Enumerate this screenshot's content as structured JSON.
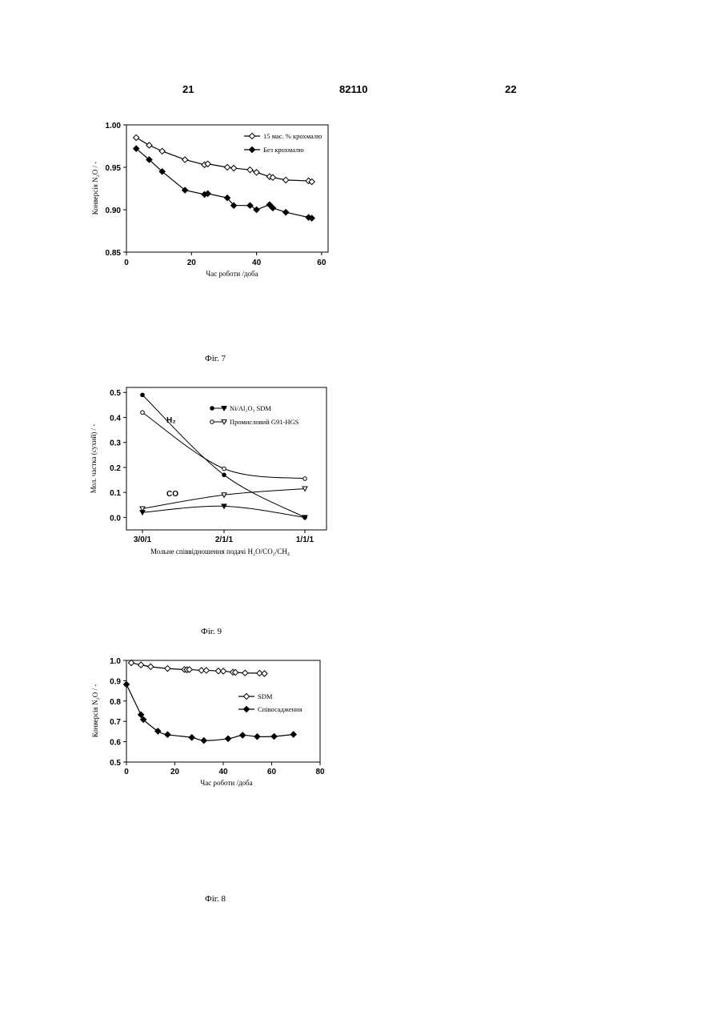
{
  "header": {
    "left": "21",
    "center": "82110",
    "right": "22"
  },
  "captions": {
    "fig7": "Фіг. 7",
    "fig9": "Фіг. 9",
    "fig8": "Фіг. 8"
  },
  "chart_data": [
    {
      "id": "fig7",
      "type": "line",
      "xlabel": "Час роботи /доба",
      "ylabel": "Конверсія N₂O / -",
      "xlim": [
        0,
        62
      ],
      "ylim": [
        0.85,
        1.0
      ],
      "xticks": [
        "0",
        "20",
        "40",
        "60"
      ],
      "yticks": [
        "0.85",
        "0.90",
        "0.95",
        "1.00"
      ],
      "legend_position": "top-right",
      "series": [
        {
          "name": "15 мас. % крохмалю",
          "marker": "open-diamond",
          "x": [
            3,
            7,
            11,
            18,
            24,
            25,
            31,
            33,
            38,
            40,
            44,
            45,
            49,
            56,
            57
          ],
          "y": [
            0.985,
            0.976,
            0.969,
            0.959,
            0.953,
            0.954,
            0.95,
            0.949,
            0.947,
            0.944,
            0.939,
            0.938,
            0.935,
            0.934,
            0.933
          ]
        },
        {
          "name": "Без крохмалю",
          "marker": "filled-diamond",
          "x": [
            3,
            7,
            11,
            18,
            24,
            25,
            31,
            33,
            38,
            40,
            44,
            45,
            49,
            56,
            57
          ],
          "y": [
            0.972,
            0.959,
            0.945,
            0.923,
            0.918,
            0.919,
            0.914,
            0.905,
            0.905,
            0.9,
            0.906,
            0.902,
            0.897,
            0.891,
            0.89
          ]
        }
      ]
    },
    {
      "id": "fig9",
      "type": "line",
      "xlabel": "Мольне співвідношення подачі H₂O/CO₂/CH₄",
      "ylabel": "Мол. частка (сухий) / -",
      "categories": [
        "3/0/1",
        "2/1/1",
        "1/1/1"
      ],
      "ylim": [
        -0.05,
        0.52
      ],
      "yticks": [
        "0.0",
        "0.1",
        "0.2",
        "0.3",
        "0.4",
        "0.5"
      ],
      "legend_position": "top-right",
      "annotations": [
        "H₂",
        "CO"
      ],
      "series": [
        {
          "name": "Ni/Al₂O₃ SDM (H₂)",
          "marker": "filled-circle",
          "values": [
            0.49,
            0.17,
            0.0
          ]
        },
        {
          "name": "Промисловий G91-HGS (H₂)",
          "marker": "open-circle",
          "values": [
            0.42,
            0.195,
            0.155
          ]
        },
        {
          "name": "Ni/Al₂O₃ SDM (CO)",
          "marker": "filled-triangle-down",
          "values": [
            0.02,
            0.045,
            0.0
          ]
        },
        {
          "name": "Промисловий G91-HGS (CO)",
          "marker": "open-triangle-down",
          "values": [
            0.035,
            0.09,
            0.115
          ]
        }
      ],
      "legend": [
        {
          "label": "Ni/Al₂O₃ SDM",
          "markers": [
            "filled-circle",
            "filled-triangle-down"
          ]
        },
        {
          "label": "Промисловий G91-HGS",
          "markers": [
            "open-circle",
            "open-triangle-down"
          ]
        }
      ]
    },
    {
      "id": "fig8",
      "type": "line",
      "xlabel": "Час роботи /доба",
      "ylabel": "Конверсія N₂O / -",
      "xlim": [
        0,
        80
      ],
      "ylim": [
        0.5,
        1.0
      ],
      "xticks": [
        "0",
        "20",
        "40",
        "60",
        "80"
      ],
      "yticks": [
        "0.5",
        "0.6",
        "0.7",
        "0.8",
        "0.9",
        "1.0"
      ],
      "legend_position": "right",
      "series": [
        {
          "name": "SDM",
          "marker": "open-diamond",
          "x": [
            2,
            6,
            10,
            17,
            24,
            25,
            26,
            31,
            33,
            38,
            40,
            44,
            45,
            49,
            55,
            57
          ],
          "y": [
            0.988,
            0.978,
            0.969,
            0.96,
            0.955,
            0.954,
            0.955,
            0.951,
            0.951,
            0.948,
            0.947,
            0.942,
            0.941,
            0.938,
            0.937,
            0.935
          ]
        },
        {
          "name": "Співосадження",
          "marker": "filled-diamond",
          "x": [
            0,
            6,
            7,
            13,
            17,
            27,
            32,
            42,
            48,
            54,
            61,
            69
          ],
          "y": [
            0.882,
            0.733,
            0.709,
            0.652,
            0.635,
            0.621,
            0.606,
            0.615,
            0.632,
            0.625,
            0.626,
            0.636
          ]
        }
      ]
    }
  ]
}
